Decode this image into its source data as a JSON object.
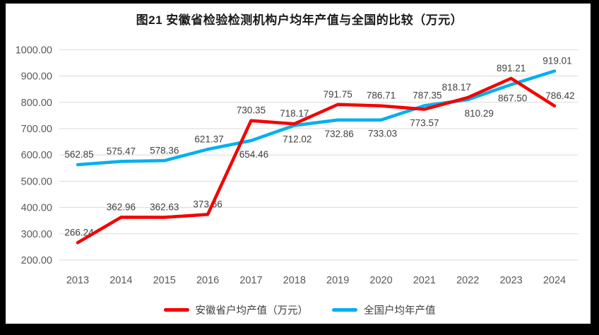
{
  "title": "图21 安徽省检验检测机构户均年产值与全国的比较（万元）",
  "chart_data": {
    "type": "line",
    "title": "图21 安徽省检验检测机构户均年产值与全国的比较（万元）",
    "categories": [
      "2013",
      "2014",
      "2015",
      "2016",
      "2017",
      "2018",
      "2019",
      "2020",
      "2021",
      "2022",
      "2023",
      "2024"
    ],
    "series": [
      {
        "name": "安徽省户均产值（万元）",
        "color": "#f40000",
        "values": [
          266.24,
          362.96,
          362.63,
          373.66,
          730.35,
          718.17,
          791.75,
          786.71,
          773.57,
          818.17,
          891.21,
          786.42
        ],
        "labels": [
          "266.24",
          "362.96",
          "362.63",
          "373.66",
          "730.35",
          "718.17",
          "791.75",
          "786.71",
          "773.57",
          "818.17",
          "891.21",
          "786.42"
        ],
        "label_pos": [
          "above",
          "above",
          "above",
          "above",
          "above",
          "above",
          "above",
          "above",
          "below",
          "above",
          "above",
          "above"
        ],
        "label_dx": [
          2,
          0,
          0,
          0,
          0,
          0,
          0,
          0,
          0,
          -16,
          0,
          8
        ]
      },
      {
        "name": "全国户均年产值",
        "color": "#00b0f0",
        "values": [
          562.85,
          575.47,
          578.36,
          621.37,
          654.46,
          712.02,
          732.86,
          733.03,
          787.35,
          810.29,
          867.5,
          919.01
        ],
        "labels": [
          "562.85",
          "575.47",
          "578.36",
          "621.37",
          "654.46",
          "712.02",
          "732.86",
          "733.03",
          "787.35",
          "810.29",
          "867.50",
          "919.01"
        ],
        "label_pos": [
          "above",
          "above",
          "above",
          "above",
          "below",
          "below",
          "below",
          "below",
          "above",
          "below",
          "below",
          "above"
        ],
        "label_dx": [
          2,
          0,
          0,
          2,
          4,
          4,
          2,
          2,
          4,
          16,
          2,
          4
        ]
      }
    ],
    "ylim": [
      200,
      1000
    ],
    "ytick_step": 100,
    "ytick_labels": [
      "200.00",
      "300.00",
      "400.00",
      "500.00",
      "600.00",
      "700.00",
      "800.00",
      "900.00",
      "1000.00"
    ],
    "grid": "horizontal",
    "gridline_color": "#d9d9d9",
    "axis_text_color": "#595959",
    "data_label_color": "#404040",
    "legend_position": "bottom"
  },
  "legend": {
    "items": [
      {
        "label": "安徽省户均产值（万元）",
        "color": "#f40000"
      },
      {
        "label": "全国户均年产值",
        "color": "#00b0f0"
      }
    ]
  }
}
